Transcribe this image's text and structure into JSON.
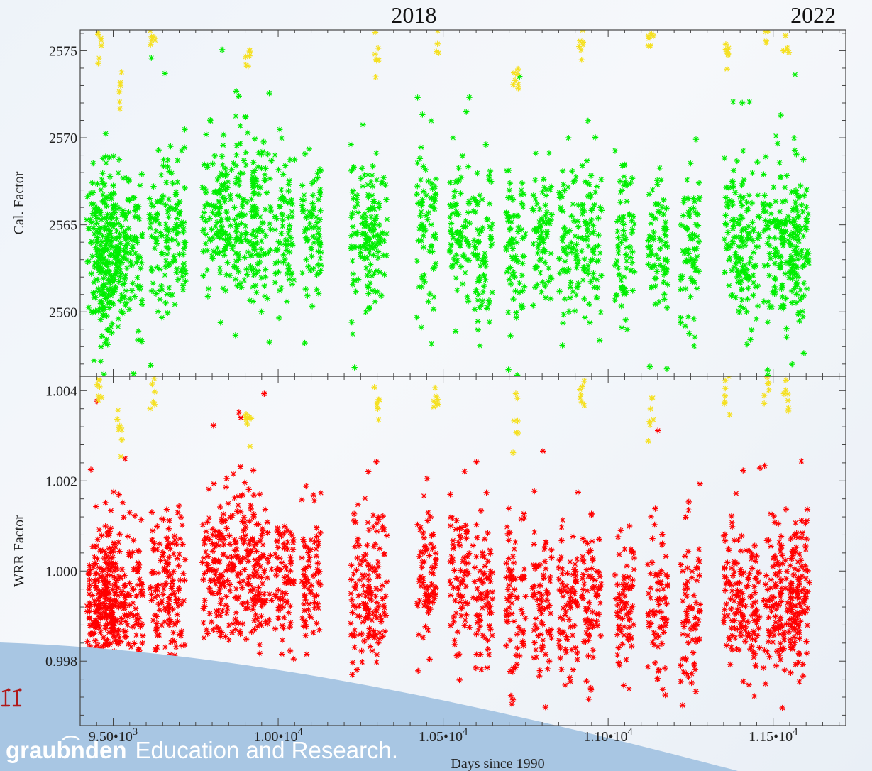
{
  "chart_data": [
    {
      "type": "scatter",
      "ylabel": "Cal. Factor",
      "xlim": [
        9400,
        11720
      ],
      "ylim": [
        2556.3,
        2576.2
      ],
      "x_ticks": [
        9500,
        10000,
        10500,
        11000,
        11500
      ],
      "y_ticks": [
        2560,
        2565,
        2570,
        2575
      ],
      "y_tick_labels": [
        "2560",
        "2565",
        "2570",
        "2575"
      ],
      "grid": false,
      "marker": "asterisk",
      "series": [
        {
          "color": "#00ee00",
          "points": [
            [
              9450,
              2563.5
            ],
            [
              9470,
              2562.8
            ],
            [
              9490,
              2564.2
            ],
            [
              9510,
              2563.1
            ],
            [
              9560,
              2563.9
            ],
            [
              9640,
              2564.4
            ],
            [
              9690,
              2564.1
            ],
            [
              9800,
              2565.5
            ],
            [
              9850,
              2565.3
            ],
            [
              9900,
              2565.8
            ],
            [
              9950,
              2565.2
            ],
            [
              10020,
              2565.0
            ],
            [
              10100,
              2564.8
            ],
            [
              10250,
              2564.6
            ],
            [
              10300,
              2564.5
            ],
            [
              10450,
              2564.9
            ],
            [
              10550,
              2564.4
            ],
            [
              10620,
              2564.3
            ],
            [
              10720,
              2563.9
            ],
            [
              10800,
              2563.7
            ],
            [
              10880,
              2563.8
            ],
            [
              10950,
              2563.8
            ],
            [
              11050,
              2564.0
            ],
            [
              11150,
              2563.9
            ],
            [
              11250,
              2563.6
            ],
            [
              11380,
              2564.2
            ],
            [
              11430,
              2563.9
            ],
            [
              11500,
              2564.1
            ],
            [
              11550,
              2563.7
            ],
            [
              11580,
              2564.3
            ]
          ]
        },
        {
          "color": "#f5e020",
          "points": [
            [
              9460,
              2575.0
            ],
            [
              9520,
              2573.0
            ],
            [
              9620,
              2575.8
            ],
            [
              9910,
              2575.0
            ],
            [
              10300,
              2574.5
            ],
            [
              10480,
              2575.5
            ],
            [
              10720,
              2573.5
            ],
            [
              10920,
              2575.5
            ],
            [
              11130,
              2575.8
            ],
            [
              11360,
              2575.0
            ],
            [
              11480,
              2576.0
            ],
            [
              11540,
              2575.5
            ]
          ]
        }
      ]
    },
    {
      "type": "scatter",
      "xlabel": "Days since 1990",
      "ylabel": "WRR Factor",
      "xlim": [
        9400,
        11720
      ],
      "ylim": [
        0.99657,
        1.00432
      ],
      "x_ticks": [
        9500,
        10000,
        10500,
        11000,
        11500
      ],
      "x_tick_labels": [
        "9.50•10³",
        "1.00•10⁴",
        "1.05•10⁴",
        "1.10•10⁴",
        "1.15•10⁴"
      ],
      "y_ticks": [
        0.998,
        1.0,
        1.002,
        1.004
      ],
      "y_tick_labels": [
        "0.998",
        "1.000",
        "1.002",
        "1.004"
      ],
      "grid": false,
      "marker": "asterisk",
      "series": [
        {
          "color": "#ff0000",
          "points": [
            [
              9450,
              0.9993
            ],
            [
              9470,
              0.9991
            ],
            [
              9490,
              0.9995
            ],
            [
              9510,
              0.9992
            ],
            [
              9560,
              0.9994
            ],
            [
              9640,
              0.9996
            ],
            [
              9690,
              0.9995
            ],
            [
              9800,
              1.0001
            ],
            [
              9850,
              1.0
            ],
            [
              9900,
              1.0002
            ],
            [
              9950,
              1.0
            ],
            [
              10020,
              0.9999
            ],
            [
              10100,
              0.9998
            ],
            [
              10250,
              0.9997
            ],
            [
              10300,
              0.9997
            ],
            [
              10450,
              0.9999
            ],
            [
              10550,
              0.9996
            ],
            [
              10620,
              0.9995
            ],
            [
              10720,
              0.9994
            ],
            [
              10800,
              0.9992
            ],
            [
              10880,
              0.9993
            ],
            [
              10950,
              0.9993
            ],
            [
              11050,
              0.9994
            ],
            [
              11150,
              0.9993
            ],
            [
              11250,
              0.9991
            ],
            [
              11380,
              0.9995
            ],
            [
              11430,
              0.9993
            ],
            [
              11500,
              0.9995
            ],
            [
              11550,
              0.9992
            ],
            [
              11580,
              0.9996
            ]
          ]
        },
        {
          "color": "#f5e020",
          "points": [
            [
              9460,
              1.0039
            ],
            [
              9520,
              1.0031
            ],
            [
              9620,
              1.0041
            ],
            [
              9910,
              1.0033
            ],
            [
              10300,
              1.0036
            ],
            [
              10480,
              1.0038
            ],
            [
              10720,
              1.0032
            ],
            [
              10920,
              1.0039
            ],
            [
              11130,
              1.0035
            ],
            [
              11360,
              1.0038
            ],
            [
              11480,
              1.0041
            ],
            [
              11540,
              1.004
            ]
          ]
        }
      ]
    }
  ],
  "top_labels": {
    "left": {
      "text": "2018",
      "x": 10420
    },
    "right": {
      "text": "2022",
      "x": 11630
    }
  },
  "footer": {
    "brand": "graub͡nden",
    "tagline": "Education and Research."
  },
  "colors": {
    "footer_band": "#a8c6e3",
    "series_green": "#00ee00",
    "series_red": "#ff0000",
    "series_yellow": "#f5e020",
    "axis": "#444444",
    "logo_red": "#b01818"
  },
  "icons": {
    "logo": "red-figures-logo-icon"
  }
}
